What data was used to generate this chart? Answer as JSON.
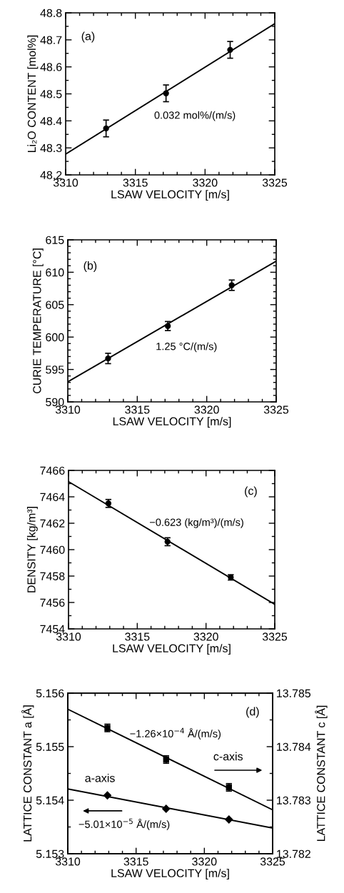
{
  "chart_data": [
    {
      "type": "scatter",
      "xlabel": "LSAW VELOCITY [m/s]",
      "ylabel": "Li₂O CONTENT [mol%]",
      "grid": false,
      "legend": false,
      "xlim": [
        3310,
        3325
      ],
      "ylim": [
        48.2,
        48.8
      ],
      "xticks": [
        3310,
        {
          "value": 3311,
          "label": null
        },
        {
          "value": 3312,
          "label": null
        },
        {
          "value": 3313,
          "label": null
        },
        {
          "value": 3314,
          "label": null
        },
        3315,
        {
          "value": 3316,
          "label": null
        },
        {
          "value": 3317,
          "label": null
        },
        {
          "value": 3318,
          "label": null
        },
        {
          "value": 3319,
          "label": null
        },
        3320,
        {
          "value": 3321,
          "label": null
        },
        {
          "value": 3322,
          "label": null
        },
        {
          "value": 3323,
          "label": null
        },
        {
          "value": 3324,
          "label": null
        },
        3325
      ],
      "yticks": [
        {
          "value": 48.2,
          "label": "48.2"
        },
        {
          "value": 48.25,
          "label": null
        },
        {
          "value": 48.3,
          "label": "48.3"
        },
        {
          "value": 48.35,
          "label": null
        },
        {
          "value": 48.4,
          "label": "48.4"
        },
        {
          "value": 48.45,
          "label": null
        },
        {
          "value": 48.5,
          "label": "48.5"
        },
        {
          "value": 48.55,
          "label": null
        },
        {
          "value": 48.6,
          "label": "48.6"
        },
        {
          "value": 48.65,
          "label": null
        },
        {
          "value": 48.7,
          "label": "48.7"
        },
        {
          "value": 48.75,
          "label": null
        },
        {
          "value": 48.8,
          "label": "48.8"
        }
      ],
      "series": [
        {
          "marker": "circle",
          "color": "#000000",
          "x": [
            3312.9,
            3317.2,
            3321.8
          ],
          "values": [
            48.372,
            48.502,
            48.663
          ],
          "errors": [
            0.031,
            0.031,
            0.031
          ]
        },
        {
          "type": "line",
          "color": "#000000",
          "x": [
            3310,
            3325
          ],
          "values": [
            48.277,
            48.76
          ]
        }
      ],
      "annotations": [
        "(a)",
        "0.032 mol%/(m/s)"
      ]
    },
    {
      "type": "scatter",
      "xlabel": "LSAW VELOCITY [m/s]",
      "ylabel": "CURIE TEMPERATURE [°C]",
      "grid": false,
      "legend": false,
      "xlim": [
        3310,
        3325
      ],
      "ylim": [
        590,
        615
      ],
      "xticks": [
        3310,
        {
          "value": 3311,
          "label": null
        },
        {
          "value": 3312,
          "label": null
        },
        {
          "value": 3313,
          "label": null
        },
        {
          "value": 3314,
          "label": null
        },
        3315,
        {
          "value": 3316,
          "label": null
        },
        {
          "value": 3317,
          "label": null
        },
        {
          "value": 3318,
          "label": null
        },
        {
          "value": 3319,
          "label": null
        },
        3320,
        {
          "value": 3321,
          "label": null
        },
        {
          "value": 3322,
          "label": null
        },
        {
          "value": 3323,
          "label": null
        },
        {
          "value": 3324,
          "label": null
        },
        3325
      ],
      "yticks": [
        590,
        {
          "value": 591,
          "label": null
        },
        {
          "value": 592,
          "label": null
        },
        {
          "value": 593,
          "label": null
        },
        {
          "value": 594,
          "label": null
        },
        595,
        {
          "value": 596,
          "label": null
        },
        {
          "value": 597,
          "label": null
        },
        {
          "value": 598,
          "label": null
        },
        {
          "value": 599,
          "label": null
        },
        600,
        {
          "value": 601,
          "label": null
        },
        {
          "value": 602,
          "label": null
        },
        {
          "value": 603,
          "label": null
        },
        {
          "value": 604,
          "label": null
        },
        605,
        {
          "value": 606,
          "label": null
        },
        {
          "value": 607,
          "label": null
        },
        {
          "value": 608,
          "label": null
        },
        {
          "value": 609,
          "label": null
        },
        610,
        {
          "value": 611,
          "label": null
        },
        {
          "value": 612,
          "label": null
        },
        {
          "value": 613,
          "label": null
        },
        {
          "value": 614,
          "label": null
        },
        615
      ],
      "series": [
        {
          "marker": "circle",
          "color": "#000000",
          "x": [
            3312.9,
            3317.2,
            3321.8
          ],
          "values": [
            596.7,
            601.7,
            608.0
          ],
          "errors": [
            0.8,
            0.7,
            0.8
          ]
        },
        {
          "type": "line",
          "color": "#000000",
          "x": [
            3310,
            3325
          ],
          "values": [
            593.1,
            611.7
          ]
        }
      ],
      "annotations": [
        "(b)",
        "1.25 °C/(m/s)"
      ]
    },
    {
      "type": "scatter",
      "xlabel": "LSAW VELOCITY [m/s]",
      "ylabel": "DENSITY [kg/m³]",
      "grid": false,
      "legend": false,
      "xlim": [
        3310,
        3325
      ],
      "ylim": [
        7454,
        7466
      ],
      "xticks": [
        3310,
        {
          "value": 3311,
          "label": null
        },
        {
          "value": 3312,
          "label": null
        },
        {
          "value": 3313,
          "label": null
        },
        {
          "value": 3314,
          "label": null
        },
        3315,
        {
          "value": 3316,
          "label": null
        },
        {
          "value": 3317,
          "label": null
        },
        {
          "value": 3318,
          "label": null
        },
        {
          "value": 3319,
          "label": null
        },
        3320,
        {
          "value": 3321,
          "label": null
        },
        {
          "value": 3322,
          "label": null
        },
        {
          "value": 3323,
          "label": null
        },
        {
          "value": 3324,
          "label": null
        },
        3325
      ],
      "yticks": [
        7454,
        {
          "value": 7455,
          "label": null
        },
        7456,
        {
          "value": 7457,
          "label": null
        },
        7458,
        {
          "value": 7459,
          "label": null
        },
        7460,
        {
          "value": 7461,
          "label": null
        },
        7462,
        {
          "value": 7463,
          "label": null
        },
        7464,
        {
          "value": 7465,
          "label": null
        },
        7466
      ],
      "series": [
        {
          "marker": "circle",
          "color": "#000000",
          "x": [
            3312.9,
            3317.2,
            3321.8
          ],
          "values": [
            7463.5,
            7460.6,
            7457.9
          ],
          "errors": [
            0.3,
            0.3,
            0.2
          ]
        },
        {
          "type": "line",
          "color": "#000000",
          "x": [
            3310,
            3325
          ],
          "values": [
            7465.15,
            7455.86
          ]
        }
      ],
      "annotations": [
        "(c)",
        "−0.623 (kg/m³)/(m/s)"
      ]
    },
    {
      "type": "scatter",
      "xlabel": "LSAW VELOCITY [m/s]",
      "ylabel": "LATTICE CONSTANT a [Å]",
      "y2label": "LATTICE CONSTANT c [Å]",
      "grid": false,
      "legend": false,
      "xlim": [
        3310,
        3325
      ],
      "ylim": [
        5.153,
        5.156
      ],
      "y2lim": [
        13.782,
        13.785
      ],
      "xticks": [
        3310,
        {
          "value": 3311,
          "label": null
        },
        {
          "value": 3312,
          "label": null
        },
        {
          "value": 3313,
          "label": null
        },
        {
          "value": 3314,
          "label": null
        },
        3315,
        {
          "value": 3316,
          "label": null
        },
        {
          "value": 3317,
          "label": null
        },
        {
          "value": 3318,
          "label": null
        },
        {
          "value": 3319,
          "label": null
        },
        3320,
        {
          "value": 3321,
          "label": null
        },
        {
          "value": 3322,
          "label": null
        },
        {
          "value": 3323,
          "label": null
        },
        {
          "value": 3324,
          "label": null
        },
        3325
      ],
      "yticks": [
        5.153,
        {
          "value": 5.1535,
          "label": null
        },
        5.154,
        {
          "value": 5.1545,
          "label": null
        },
        5.155,
        {
          "value": 5.1555,
          "label": null
        },
        5.156
      ],
      "y2ticks": [
        13.782,
        {
          "value": 13.7825,
          "label": null
        },
        13.783,
        {
          "value": 13.7835,
          "label": null
        },
        13.784,
        {
          "value": 13.7845,
          "label": null
        },
        13.785
      ],
      "series": [
        {
          "marker": "diamond",
          "color": "#000000",
          "x": [
            3312.9,
            3317.2,
            3321.8
          ],
          "values": [
            5.15409,
            5.15384,
            5.15364
          ]
        },
        {
          "type": "line",
          "color": "#000000",
          "x": [
            3310,
            3325
          ],
          "values": [
            5.15421,
            5.15348
          ]
        },
        {
          "marker": "square",
          "axis": "y2",
          "color": "#000000",
          "x": [
            3312.9,
            3317.2,
            3321.8
          ],
          "values": [
            13.78435,
            13.78376,
            13.78324
          ],
          "errors": [
            7e-05,
            7e-05,
            7e-05
          ]
        },
        {
          "type": "line",
          "axis": "y2",
          "color": "#000000",
          "x": [
            3310,
            3325
          ],
          "values": [
            13.7847,
            13.78282
          ]
        }
      ],
      "annotations": [
        "(d)",
        "c-axis",
        "a-axis",
        "−1.26×10$^{−4}$ Å/(m/s)",
        "−5.01×10$^{−5}$ Å/(m/s)"
      ]
    }
  ]
}
